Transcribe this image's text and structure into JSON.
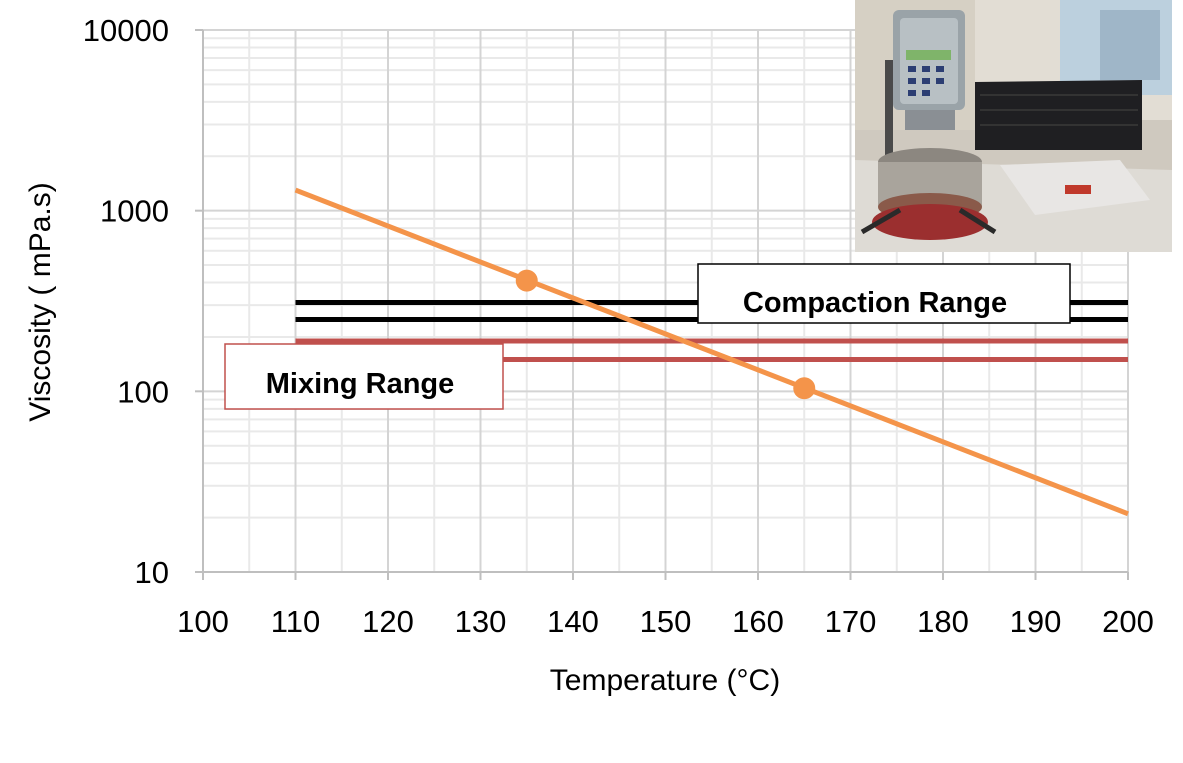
{
  "chart_data": {
    "type": "line",
    "title": "",
    "xlabel": "Temperature (°C)",
    "ylabel": "Viscosity ( mPa.s)",
    "xlim": [
      100,
      200
    ],
    "ylim": [
      10,
      10000
    ],
    "yscale": "log",
    "grid": true,
    "x_ticks": [
      100,
      110,
      120,
      130,
      140,
      150,
      160,
      170,
      180,
      190,
      200
    ],
    "y_ticks": [
      10,
      100,
      1000,
      10000
    ],
    "x_tick_labels": [
      "100",
      "110",
      "120",
      "130",
      "140",
      "150",
      "160",
      "170",
      "180",
      "190",
      "200"
    ],
    "y_tick_labels": [
      "10",
      "100",
      "1000",
      "10000"
    ],
    "series": [
      {
        "type": "line",
        "color": "#f4944a",
        "points": [
          [
            110,
            1300
          ],
          [
            200,
            21
          ]
        ],
        "markers": [
          [
            135,
            410
          ],
          [
            165,
            104
          ]
        ]
      }
    ],
    "ranges": [
      {
        "label": "Compaction Range",
        "color": "#000000",
        "x": [
          110,
          200
        ],
        "lines": [
          310,
          250
        ]
      },
      {
        "label": "Mixing Range",
        "color": "#c0504d",
        "x": [
          110,
          200
        ],
        "lines": [
          190,
          150
        ]
      }
    ],
    "inset": "photo-of-viscometer"
  }
}
